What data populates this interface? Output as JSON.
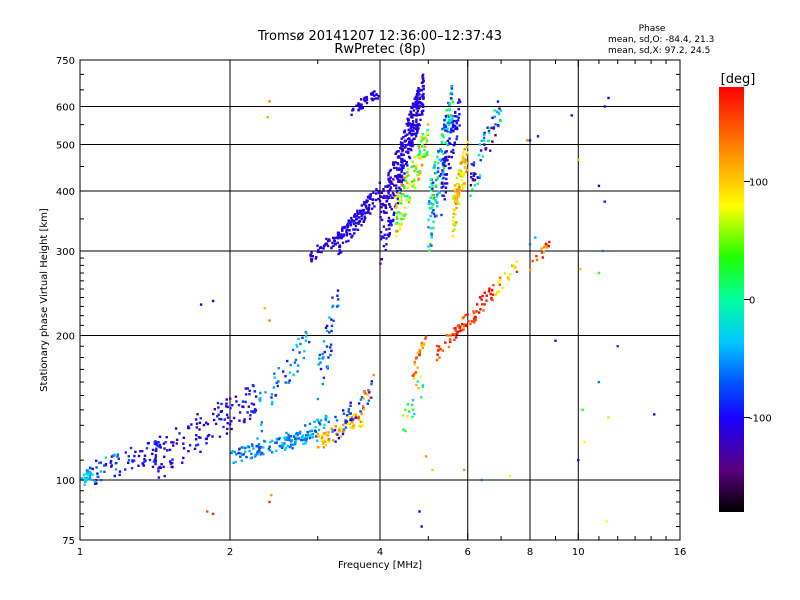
{
  "chart_data": {
    "type": "scatter",
    "title": "Tromsø 20141207 12:36:00–12:37:43",
    "subtitle": "RwPretec (8p)",
    "xlabel": "Frequency [MHz]",
    "ylabel": "Stationary phase Virtual Height [km]",
    "xscale": "log",
    "yscale": "log",
    "xlim": [
      1,
      16
    ],
    "ylim": [
      75,
      750
    ],
    "xticks": [
      1,
      2,
      4,
      6,
      8,
      10,
      16
    ],
    "xtick_labels": [
      "1",
      "2",
      "4",
      "6",
      "8",
      "10",
      "16"
    ],
    "yticks": [
      75,
      100,
      200,
      300,
      400,
      500,
      600,
      750
    ],
    "ytick_labels": [
      "75",
      "100",
      "200",
      "300",
      "400",
      "500",
      "600",
      "750"
    ],
    "grid": true,
    "phase_stats": {
      "heading": "Phase",
      "o_line": "mean, sd,O: -84.4, 21.3",
      "x_line": "mean, sd,X:  97.2, 24.5"
    },
    "colorbar": {
      "label": "[deg]",
      "range": [
        -180,
        180
      ],
      "ticks": [
        100,
        0,
        -100
      ],
      "tick_labels": [
        "100",
        "0",
        "-100"
      ]
    },
    "series_note": "Point clusters: [x_start, x_end, height_start, height_end, height_spread_km, phase_deg, point_count, phase_spread_deg, seed]",
    "clusters": [
      [
        1.0,
        1.06,
        98,
        104,
        3,
        -35,
        25,
        20,
        1
      ],
      [
        1.05,
        1.5,
        103,
        118,
        6,
        -95,
        70,
        30,
        2
      ],
      [
        1.4,
        2.3,
        110,
        150,
        12,
        -105,
        140,
        25,
        3
      ],
      [
        2.0,
        3.0,
        112,
        124,
        4,
        -55,
        110,
        25,
        4
      ],
      [
        2.5,
        3.2,
        118,
        135,
        5,
        -45,
        45,
        30,
        5
      ],
      [
        3.0,
        3.7,
        120,
        135,
        5,
        110,
        70,
        30,
        6
      ],
      [
        3.2,
        3.9,
        125,
        155,
        8,
        -80,
        40,
        30,
        7
      ],
      [
        2.2,
        2.9,
        130,
        200,
        15,
        -60,
        50,
        40,
        8
      ],
      [
        3.0,
        3.3,
        150,
        250,
        25,
        -70,
        40,
        40,
        9
      ],
      [
        2.9,
        3.4,
        290,
        330,
        10,
        -110,
        50,
        15,
        10
      ],
      [
        3.3,
        4.0,
        310,
        400,
        18,
        -105,
        130,
        15,
        11
      ],
      [
        4.0,
        4.9,
        330,
        650,
        60,
        -110,
        380,
        18,
        12
      ],
      [
        4.3,
        5.0,
        350,
        520,
        40,
        60,
        120,
        70,
        13
      ],
      [
        5.0,
        5.6,
        340,
        620,
        60,
        -30,
        140,
        70,
        14
      ],
      [
        5.6,
        6.0,
        360,
        480,
        40,
        100,
        90,
        40,
        15
      ],
      [
        5.3,
        5.8,
        400,
        600,
        50,
        -100,
        80,
        20,
        16
      ],
      [
        6.0,
        7.0,
        400,
        600,
        40,
        -60,
        60,
        90,
        17
      ],
      [
        3.5,
        4.0,
        590,
        640,
        15,
        -110,
        40,
        10,
        18
      ],
      [
        4.6,
        4.95,
        160,
        200,
        6,
        130,
        25,
        40,
        19
      ],
      [
        5.2,
        6.0,
        185,
        215,
        8,
        160,
        45,
        30,
        20
      ],
      [
        6.0,
        6.8,
        215,
        250,
        10,
        170,
        35,
        30,
        21
      ],
      [
        6.8,
        7.6,
        250,
        280,
        8,
        120,
        20,
        50,
        22
      ],
      [
        8.0,
        8.8,
        280,
        310,
        8,
        150,
        15,
        50,
        23
      ],
      [
        4.4,
        4.9,
        130,
        160,
        10,
        40,
        20,
        80,
        24
      ],
      [
        3.6,
        3.9,
        140,
        160,
        8,
        140,
        10,
        40,
        25
      ],
      [
        1.0,
        1.2,
        100,
        110,
        5,
        -40,
        12,
        40,
        26
      ]
    ],
    "isolated_points": [
      [
        1.8,
        86,
        150
      ],
      [
        1.85,
        85,
        170
      ],
      [
        2.4,
        90,
        160
      ],
      [
        2.42,
        93,
        120
      ],
      [
        1.85,
        236,
        -110
      ],
      [
        1.75,
        232,
        -100
      ],
      [
        2.35,
        228,
        110
      ],
      [
        2.4,
        215,
        130
      ],
      [
        2.4,
        615,
        130
      ],
      [
        2.38,
        570,
        110
      ],
      [
        8.0,
        510,
        -110
      ],
      [
        8.3,
        520,
        -90
      ],
      [
        9.7,
        575,
        -100
      ],
      [
        11.3,
        600,
        -110
      ],
      [
        10.0,
        465,
        100
      ],
      [
        11.0,
        410,
        -110
      ],
      [
        11.3,
        380,
        -90
      ],
      [
        11.2,
        300,
        -60
      ],
      [
        11.0,
        270,
        40
      ],
      [
        10.1,
        275,
        100
      ],
      [
        11.0,
        160,
        -60
      ],
      [
        10.2,
        140,
        30
      ],
      [
        11.5,
        135,
        90
      ],
      [
        10.3,
        120,
        80
      ],
      [
        11.4,
        82,
        80
      ],
      [
        10.0,
        110,
        -110
      ],
      [
        14.2,
        137,
        -100
      ],
      [
        12.0,
        190,
        -80
      ],
      [
        4.8,
        86,
        -100
      ],
      [
        4.85,
        80,
        -110
      ],
      [
        5.9,
        105,
        120
      ],
      [
        6.4,
        100,
        -60
      ],
      [
        7.3,
        102,
        80
      ],
      [
        9.0,
        195,
        -100
      ],
      [
        8.2,
        320,
        -40
      ],
      [
        8.0,
        310,
        -60
      ],
      [
        5.1,
        105,
        100
      ],
      [
        4.95,
        112,
        120
      ],
      [
        7.9,
        510,
        130
      ],
      [
        11.5,
        625,
        -100
      ]
    ]
  }
}
